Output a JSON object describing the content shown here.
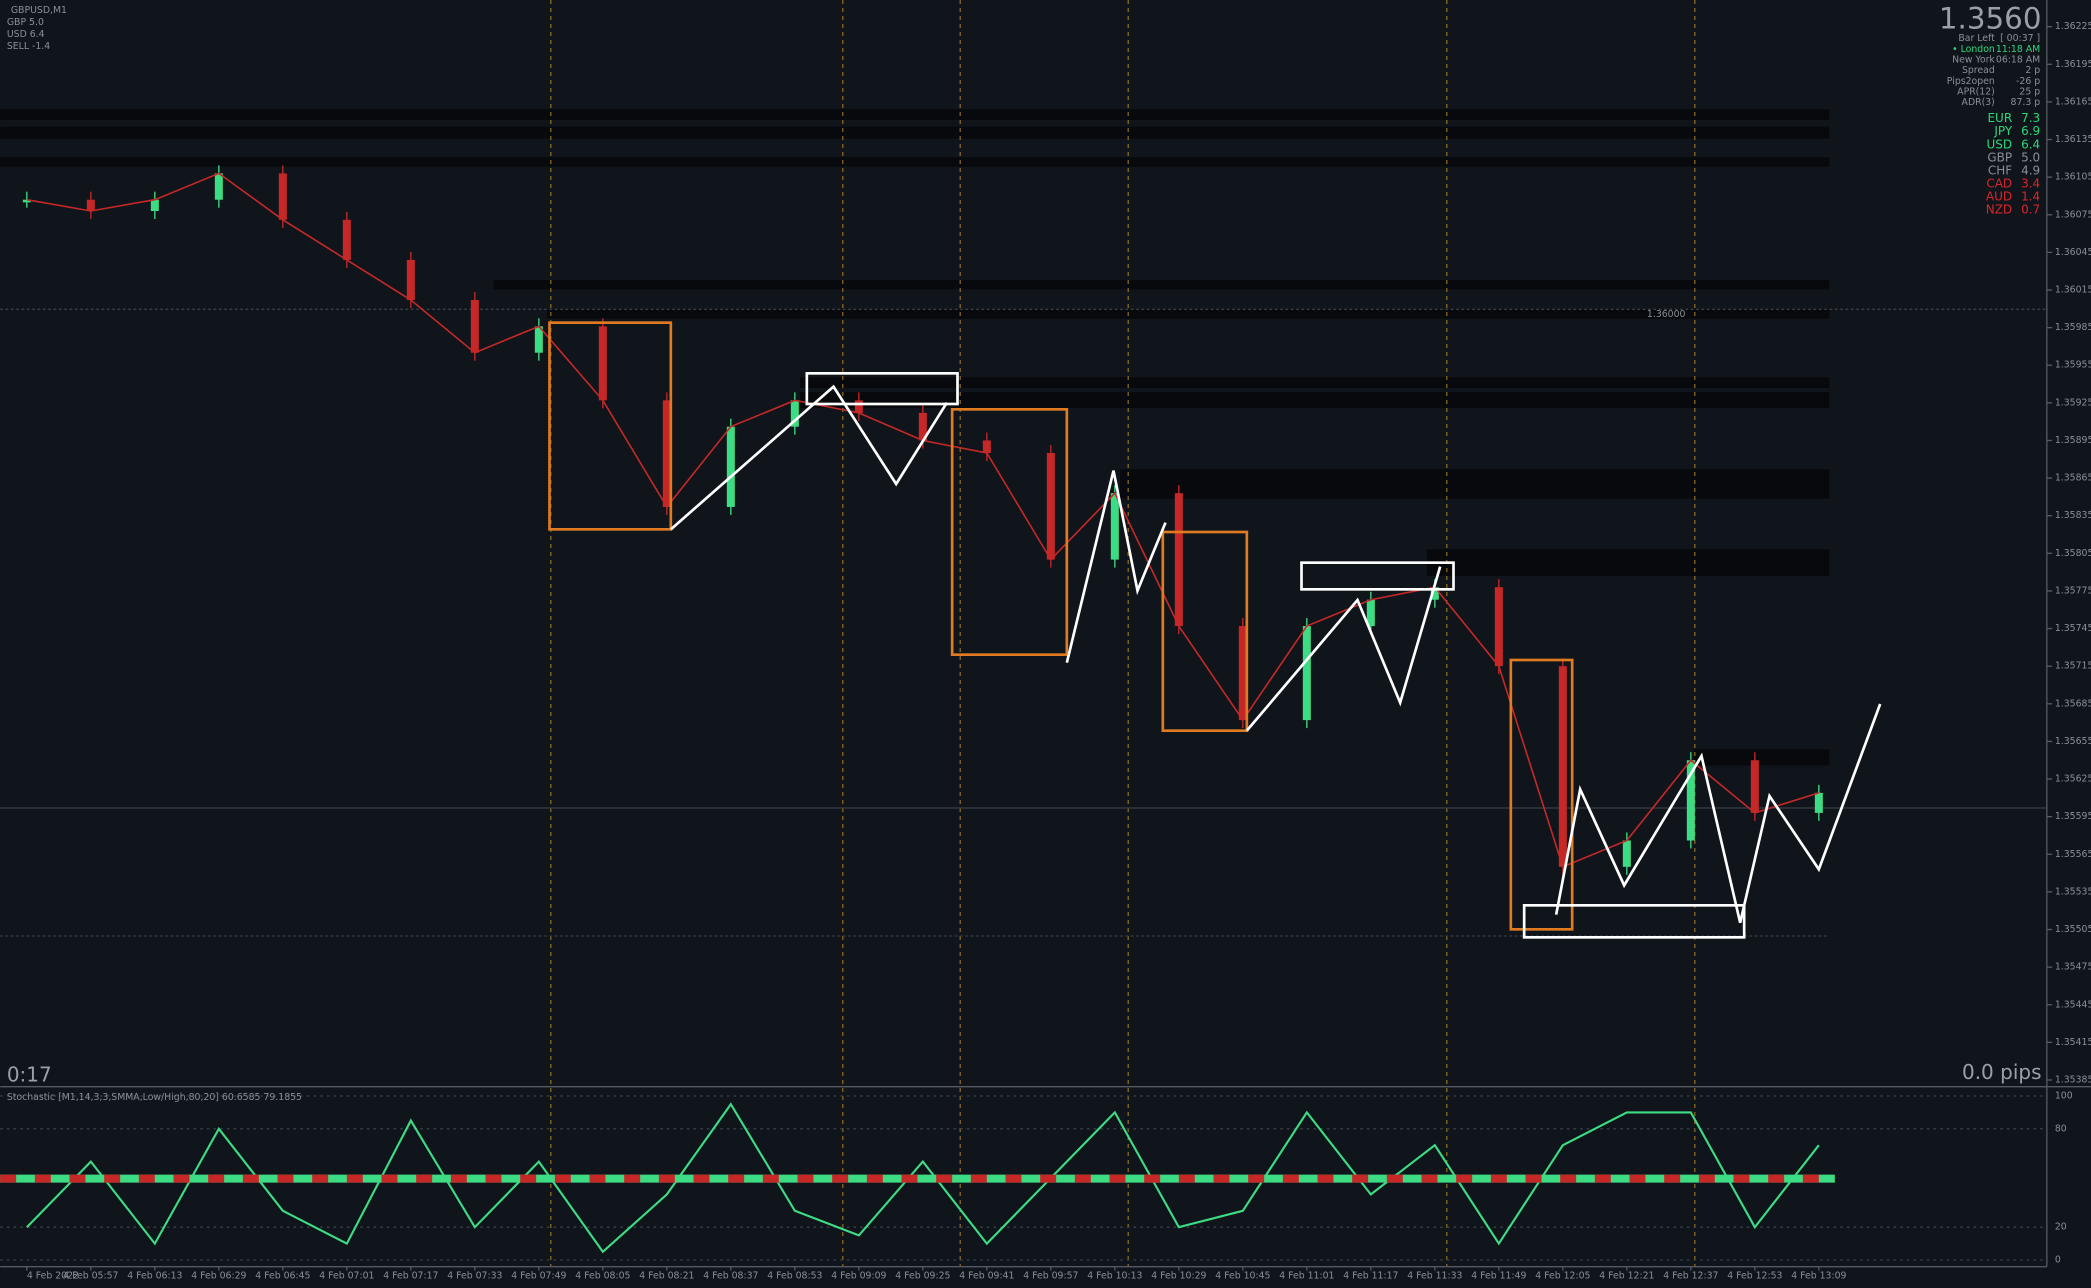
{
  "header": {
    "symbol": "GBPUSD,M1",
    "lines": [
      "GBP 5.0",
      "USD 6.4",
      "SELL -1.4"
    ]
  },
  "info": {
    "price": "1.3560",
    "rows": [
      {
        "label": "Bar Left",
        "value": "[ 00:37 ]"
      },
      {
        "label": "• London",
        "value": "11:18 AM"
      },
      {
        "label": "New York",
        "value": "06:18 AM"
      },
      {
        "label": "Spread",
        "value": "2 p"
      },
      {
        "label": "Pips2open",
        "value": "-26 p"
      },
      {
        "label": "APR(12)",
        "value": "25 p"
      },
      {
        "label": "ADR(3)",
        "value": "87.3 p"
      }
    ],
    "strength": [
      {
        "label": "EUR",
        "value": "7.3",
        "color": "#2fd67a"
      },
      {
        "label": "JPY",
        "value": "6.9",
        "color": "#2fd67a"
      },
      {
        "label": "USD",
        "value": "6.4",
        "color": "#2fd67a"
      },
      {
        "label": "GBP",
        "value": "5.0",
        "color": "#8a8f96"
      },
      {
        "label": "CHF",
        "value": "4.9",
        "color": "#8a8f96"
      },
      {
        "label": "CAD",
        "value": "3.4",
        "color": "#d9262b"
      },
      {
        "label": "AUD",
        "value": "1.4",
        "color": "#d9262b"
      },
      {
        "label": "NZD",
        "value": "0.7",
        "color": "#d9262b"
      }
    ],
    "timer": "0:17",
    "pips": "0.0 pips",
    "level_label": "1.36000"
  },
  "chart_data": [
    {
      "type": "candlestick",
      "categories": [
        "4 Feb 2022",
        "4 Feb 05:57",
        "4 Feb 06:13",
        "4 Feb 06:29",
        "4 Feb 06:45",
        "4 Feb 07:01",
        "4 Feb 07:17",
        "4 Feb 07:33",
        "4 Feb 07:49",
        "4 Feb 08:05",
        "4 Feb 08:21",
        "4 Feb 08:37",
        "4 Feb 08:53",
        "4 Feb 09:09",
        "4 Feb 09:25",
        "4 Feb 09:41",
        "4 Feb 09:57",
        "4 Feb 10:13",
        "4 Feb 10:29",
        "4 Feb 10:45",
        "4 Feb 11:01",
        "4 Feb 11:17",
        "4 Feb 11:33",
        "4 Feb 11:49",
        "4 Feb 12:05",
        "4 Feb 12:21",
        "4 Feb 12:37",
        "4 Feb 12:53",
        "4 Feb 13:09"
      ],
      "values": [
        1.36087,
        1.36078,
        1.36087,
        1.36108,
        1.36071,
        1.36039,
        1.36007,
        1.35965,
        1.35986,
        1.35927,
        1.35842,
        1.35906,
        1.35927,
        1.35917,
        1.35895,
        1.35885,
        1.358,
        1.35853,
        1.35747,
        1.35672,
        1.35747,
        1.35768,
        1.35778,
        1.35715,
        1.35555,
        1.35576,
        1.3564,
        1.35598,
        1.35614
      ],
      "up_color": "#3ddc84",
      "down_color": "#c62828",
      "ylim": [
        1.35385,
        1.36225
      ],
      "yticks": [
        1.36225,
        1.36195,
        1.36165,
        1.36135,
        1.36105,
        1.36075,
        1.36045,
        1.36015,
        1.35985,
        1.35955,
        1.35925,
        1.35895,
        1.35865,
        1.35835,
        1.35805,
        1.35775,
        1.35745,
        1.35715,
        1.35685,
        1.35655,
        1.35625,
        1.35595,
        1.35565,
        1.35535,
        1.35505,
        1.35475,
        1.35445,
        1.35415,
        1.35385
      ],
      "grid": false
    },
    {
      "type": "line",
      "title": "Stochastic [M1,14,3,3,SMMA,Low/High,80,20] 60.6585 79.1855",
      "series": [
        {
          "name": "Stochastic",
          "color": "#3ddc84",
          "values": [
            20,
            60,
            10,
            80,
            30,
            10,
            85,
            20,
            60,
            5,
            40,
            95,
            30,
            15,
            60,
            10,
            50,
            90,
            20,
            30,
            90,
            40,
            70,
            10,
            70,
            90,
            90,
            20,
            70
          ]
        }
      ],
      "ylim": [
        0,
        100
      ],
      "yticks": [
        0,
        20,
        80,
        100
      ]
    }
  ]
}
